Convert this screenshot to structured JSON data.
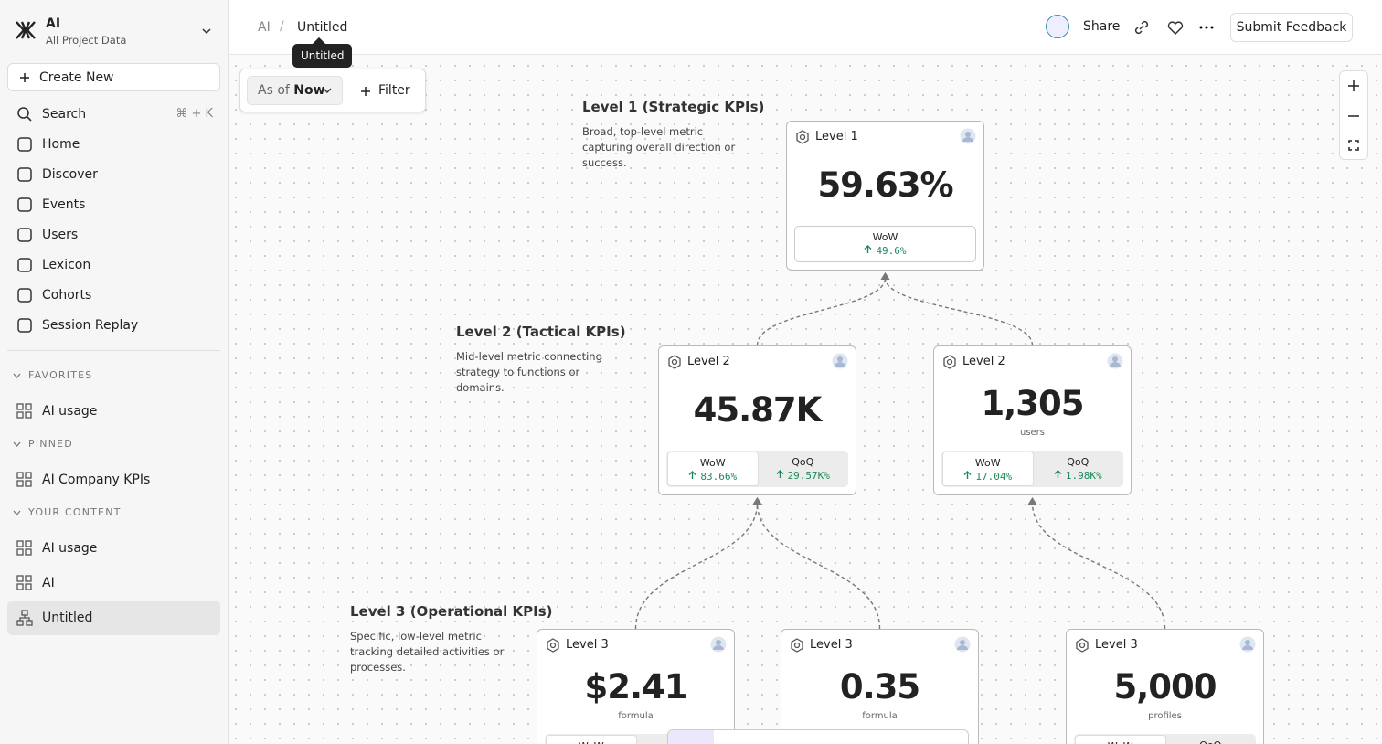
{
  "sidebar": {
    "workspace": {
      "title": "AI",
      "subtitle": "All Project Data"
    },
    "create_button": "Create New",
    "search": {
      "label": "Search",
      "shortcut": "⌘ + K"
    },
    "nav": [
      "Home",
      "Discover",
      "Events",
      "Users",
      "Lexicon",
      "Cohorts",
      "Session Replay"
    ],
    "sections": [
      {
        "title": "FAVORITES",
        "items": [
          "AI usage"
        ]
      },
      {
        "title": "PINNED",
        "items": [
          "AI Company KPIs"
        ]
      },
      {
        "title": "YOUR CONTENT",
        "items": [
          "AI usage",
          "AI",
          "Untitled"
        ]
      }
    ]
  },
  "header": {
    "breadcrumb": [
      "AI",
      "Untitled"
    ],
    "tooltip": "Untitled",
    "share": "Share",
    "feedback": "Submit Feedback"
  },
  "toolbar": {
    "as_of_label": "As of",
    "as_of_value": "Now",
    "filter": "Filter"
  },
  "levels": [
    {
      "title": "Level 1 (Strategic KPIs)",
      "description": "Broad, top-level metric capturing overall direction or success."
    },
    {
      "title": "Level 2 (Tactical KPIs)",
      "description": "Mid-level metric connecting strategy to functions or domains."
    },
    {
      "title": "Level 3 (Operational KPIs)",
      "description": "Specific, low-level metric tracking detailed activities or processes."
    }
  ],
  "cards": [
    {
      "title": "Level 1",
      "value": "59.63%",
      "comparisons": [
        {
          "label": "WoW",
          "value": "49.6%"
        }
      ]
    },
    {
      "title": "Level 2",
      "value": "45.87K",
      "comparisons": [
        {
          "label": "WoW",
          "value": "83.66%"
        },
        {
          "label": "QoQ",
          "value": "29.57K%"
        }
      ]
    },
    {
      "title": "Level 2",
      "value": "1,305",
      "unit": "users",
      "comparisons": [
        {
          "label": "WoW",
          "value": "17.04%"
        },
        {
          "label": "QoQ",
          "value": "1.98K%"
        }
      ]
    },
    {
      "title": "Level 3",
      "value": "$2.41",
      "unit": "formula",
      "comparisons": [
        {
          "label": "WoW"
        }
      ]
    },
    {
      "title": "Level 3",
      "value": "0.35",
      "unit": "formula",
      "comparisons": []
    },
    {
      "title": "Level 3",
      "value": "5,000",
      "unit": "profiles",
      "comparisons": [
        {
          "label": "WoW"
        },
        {
          "label": "QoQ"
        }
      ]
    }
  ]
}
